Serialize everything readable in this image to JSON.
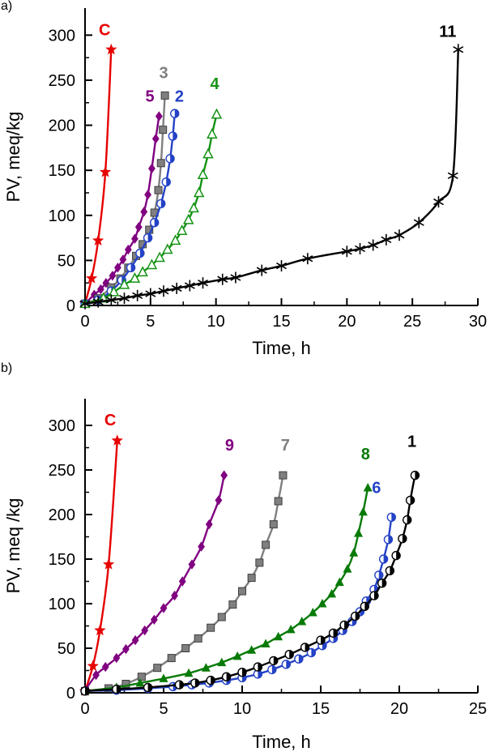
{
  "figure": {
    "background": "#ffffff"
  },
  "chart_data": [
    {
      "type": "line",
      "panel_label": "a)",
      "xlabel": "Time, h",
      "ylabel": "PV, meq/kg",
      "xlim": [
        0,
        30
      ],
      "ylim": [
        0,
        330
      ],
      "xticks": [
        0,
        5,
        10,
        15,
        20,
        25,
        30
      ],
      "yticks": [
        0,
        50,
        100,
        150,
        200,
        250,
        300
      ],
      "grid": false,
      "legend": "inline-labels",
      "series": [
        {
          "name": "C",
          "color": "#e60000",
          "marker": "star",
          "label": {
            "x": 1.5,
            "y": 300
          },
          "points": [
            [
              0,
              2
            ],
            [
              0.5,
              30
            ],
            [
              1,
              72
            ],
            [
              1.55,
              148
            ],
            [
              2,
              284
            ]
          ]
        },
        {
          "name": "5",
          "color": "#800080",
          "marker": "diamond",
          "label": {
            "x": 4.95,
            "y": 226
          },
          "points": [
            [
              0,
              2
            ],
            [
              0.7,
              12
            ],
            [
              1.2,
              18
            ],
            [
              1.6,
              25
            ],
            [
              2.1,
              33
            ],
            [
              2.5,
              42
            ],
            [
              2.9,
              51
            ],
            [
              3.3,
              62
            ],
            [
              3.8,
              74
            ],
            [
              4.1,
              87
            ],
            [
              4.5,
              104
            ],
            [
              4.8,
              123
            ],
            [
              5.1,
              152
            ],
            [
              5.4,
              185
            ],
            [
              5.65,
              210
            ]
          ]
        },
        {
          "name": "3",
          "color": "#7f7f7f",
          "marker": "square",
          "label": {
            "x": 6.0,
            "y": 252
          },
          "points": [
            [
              0,
              2
            ],
            [
              1,
              8
            ],
            [
              2,
              20
            ],
            [
              2.7,
              30
            ],
            [
              3.3,
              42
            ],
            [
              3.9,
              55
            ],
            [
              4.4,
              68
            ],
            [
              4.9,
              84
            ],
            [
              5.3,
              103
            ],
            [
              5.6,
              128
            ],
            [
              5.8,
              158
            ],
            [
              5.95,
              195
            ],
            [
              6.1,
              233
            ]
          ]
        },
        {
          "name": "2",
          "color": "#2442c6",
          "marker": "circle-half",
          "label": {
            "x": 7.2,
            "y": 226
          },
          "points": [
            [
              0,
              2
            ],
            [
              1,
              6
            ],
            [
              2,
              16
            ],
            [
              2.8,
              28
            ],
            [
              3.5,
              42
            ],
            [
              4.2,
              58
            ],
            [
              4.8,
              75
            ],
            [
              5.3,
              92
            ],
            [
              5.8,
              113
            ],
            [
              6.2,
              137
            ],
            [
              6.5,
              163
            ],
            [
              6.7,
              188
            ],
            [
              6.85,
              213
            ]
          ]
        },
        {
          "name": "4",
          "color": "#149314",
          "marker": "triangle-open",
          "label": {
            "x": 9.9,
            "y": 240
          },
          "points": [
            [
              0,
              2
            ],
            [
              1.4,
              8
            ],
            [
              2.2,
              15
            ],
            [
              3,
              23
            ],
            [
              3.8,
              30
            ],
            [
              4.4,
              37
            ],
            [
              5.1,
              45
            ],
            [
              5.7,
              53
            ],
            [
              6.3,
              62
            ],
            [
              6.9,
              72
            ],
            [
              7.4,
              83
            ],
            [
              7.9,
              95
            ],
            [
              8.3,
              108
            ],
            [
              8.7,
              125
            ],
            [
              9,
              145
            ],
            [
              9.4,
              168
            ],
            [
              9.7,
              190
            ],
            [
              10.05,
              212
            ]
          ]
        },
        {
          "name": "11",
          "color": "#000000",
          "marker": "asterisk",
          "label": {
            "x": 27.7,
            "y": 298
          },
          "points": [
            [
              0,
              2
            ],
            [
              1,
              4
            ],
            [
              2,
              6
            ],
            [
              3,
              8
            ],
            [
              4,
              11
            ],
            [
              5,
              13
            ],
            [
              6,
              16
            ],
            [
              7,
              19
            ],
            [
              8,
              22
            ],
            [
              9,
              25
            ],
            [
              10.5,
              29
            ],
            [
              11.5,
              31
            ],
            [
              13.5,
              39
            ],
            [
              15,
              44
            ],
            [
              17,
              52
            ],
            [
              20,
              60
            ],
            [
              21,
              63
            ],
            [
              22,
              67
            ],
            [
              23,
              73
            ],
            [
              24,
              78
            ],
            [
              25.5,
              92
            ],
            [
              27,
              115
            ],
            [
              28.1,
              144
            ],
            [
              28.5,
              284
            ]
          ]
        }
      ]
    },
    {
      "type": "line",
      "panel_label": "b)",
      "xlabel": "Time, h",
      "ylabel": "PV, meq /kg",
      "xlim": [
        0,
        25
      ],
      "ylim": [
        0,
        330
      ],
      "xticks": [
        0,
        5,
        10,
        15,
        20,
        25
      ],
      "yticks": [
        0,
        50,
        100,
        150,
        200,
        250,
        300
      ],
      "grid": false,
      "legend": "inline-labels",
      "series": [
        {
          "name": "C",
          "color": "#e60000",
          "marker": "star",
          "label": {
            "x": 1.6,
            "y": 300
          },
          "points": [
            [
              0,
              2
            ],
            [
              0.5,
              30
            ],
            [
              0.95,
              70
            ],
            [
              1.5,
              144
            ],
            [
              2.05,
              283
            ]
          ]
        },
        {
          "name": "9",
          "color": "#800080",
          "marker": "diamond",
          "label": {
            "x": 9.2,
            "y": 272
          },
          "points": [
            [
              0,
              3
            ],
            [
              0.7,
              20
            ],
            [
              1.3,
              29
            ],
            [
              2,
              39
            ],
            [
              2.6,
              49
            ],
            [
              3.2,
              59
            ],
            [
              3.8,
              70
            ],
            [
              4.4,
              82
            ],
            [
              5,
              95
            ],
            [
              5.7,
              109
            ],
            [
              6.2,
              125
            ],
            [
              6.8,
              144
            ],
            [
              7.4,
              164
            ],
            [
              7.9,
              189
            ],
            [
              8.5,
              216
            ],
            [
              8.85,
              244
            ]
          ]
        },
        {
          "name": "7",
          "color": "#7f7f7f",
          "marker": "square",
          "label": {
            "x": 12.75,
            "y": 272
          },
          "points": [
            [
              0,
              2
            ],
            [
              1.5,
              5
            ],
            [
              2.6,
              10
            ],
            [
              3.6,
              18
            ],
            [
              4.6,
              28
            ],
            [
              5.5,
              39
            ],
            [
              6.4,
              50
            ],
            [
              7.2,
              61
            ],
            [
              8,
              73
            ],
            [
              8.7,
              85
            ],
            [
              9.4,
              99
            ],
            [
              10,
              114
            ],
            [
              10.6,
              129
            ],
            [
              11.1,
              146
            ],
            [
              11.5,
              166
            ],
            [
              12,
              189
            ],
            [
              12.3,
              215
            ],
            [
              12.6,
              244
            ]
          ]
        },
        {
          "name": "8",
          "color": "#077a07",
          "marker": "triangle",
          "label": {
            "x": 17.85,
            "y": 262
          },
          "points": [
            [
              0,
              2
            ],
            [
              2,
              6
            ],
            [
              3.5,
              11
            ],
            [
              5,
              16
            ],
            [
              6.6,
              22
            ],
            [
              7.7,
              28
            ],
            [
              8.7,
              34
            ],
            [
              9.7,
              41
            ],
            [
              10.6,
              48
            ],
            [
              11.5,
              55
            ],
            [
              12.3,
              63
            ],
            [
              13.1,
              71
            ],
            [
              13.8,
              80
            ],
            [
              14.5,
              90
            ],
            [
              15.1,
              100
            ],
            [
              15.7,
              111
            ],
            [
              16.2,
              124
            ],
            [
              16.7,
              139
            ],
            [
              17.1,
              157
            ],
            [
              17.4,
              179
            ],
            [
              17.7,
              203
            ],
            [
              18,
              230
            ]
          ]
        },
        {
          "name": "6",
          "color": "#2442c6",
          "marker": "circle-half",
          "label": {
            "x": 18.55,
            "y": 224
          },
          "points": [
            [
              0,
              2
            ],
            [
              2,
              3
            ],
            [
              4,
              5
            ],
            [
              5.6,
              7
            ],
            [
              6.8,
              9
            ],
            [
              7.9,
              11
            ],
            [
              9,
              14
            ],
            [
              10,
              17
            ],
            [
              11,
              21
            ],
            [
              11.9,
              26
            ],
            [
              12.8,
              32
            ],
            [
              13.6,
              38
            ],
            [
              14.4,
              45
            ],
            [
              15.1,
              53
            ],
            [
              15.8,
              61
            ],
            [
              16.4,
              70
            ],
            [
              17,
              80
            ],
            [
              17.5,
              91
            ],
            [
              17.9,
              103
            ],
            [
              18.4,
              116
            ],
            [
              18.7,
              132
            ],
            [
              19,
              150
            ],
            [
              19.3,
              172
            ],
            [
              19.5,
              197
            ]
          ]
        },
        {
          "name": "1",
          "color": "#000000",
          "marker": "circle-half",
          "label": {
            "x": 20.8,
            "y": 276
          },
          "points": [
            [
              0,
              2
            ],
            [
              2,
              4
            ],
            [
              4,
              6
            ],
            [
              6,
              9
            ],
            [
              7,
              11
            ],
            [
              8,
              14
            ],
            [
              9,
              18
            ],
            [
              10,
              23
            ],
            [
              11,
              29
            ],
            [
              12,
              36
            ],
            [
              13,
              43
            ],
            [
              14,
              51
            ],
            [
              15,
              59
            ],
            [
              15.8,
              67
            ],
            [
              16.5,
              76
            ],
            [
              17.2,
              86
            ],
            [
              17.8,
              97
            ],
            [
              18.4,
              109
            ],
            [
              18.9,
              123
            ],
            [
              19.4,
              137
            ],
            [
              19.8,
              154
            ],
            [
              20.2,
              173
            ],
            [
              20.5,
              194
            ],
            [
              20.7,
              216
            ],
            [
              21,
              244
            ]
          ]
        }
      ]
    }
  ]
}
